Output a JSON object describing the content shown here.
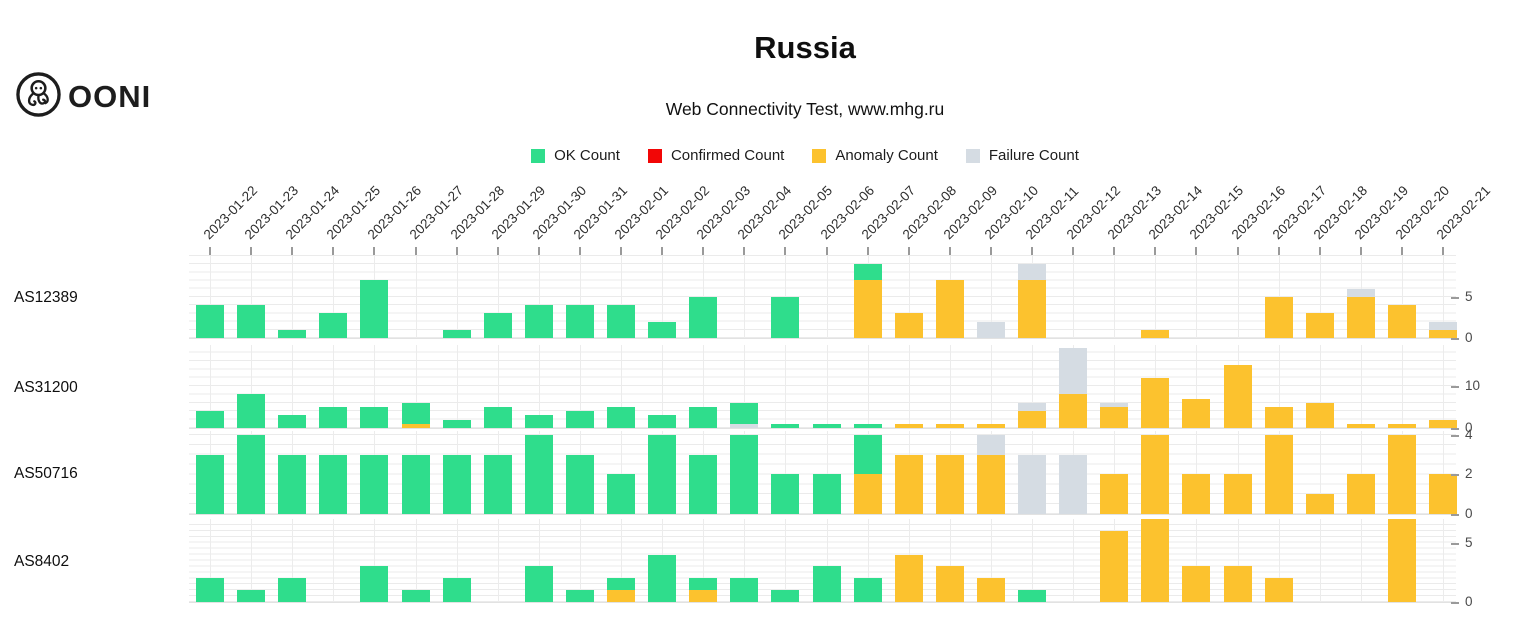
{
  "header": {
    "title": "Russia",
    "subtitle": "Web Connectivity Test, www.mhg.ru",
    "logo_text": "OONI"
  },
  "legend": [
    {
      "key": "ok",
      "label": "OK Count",
      "color": "#2fdd8c"
    },
    {
      "key": "confirmed",
      "label": "Confirmed Count",
      "color": "#f20606"
    },
    {
      "key": "anomaly",
      "label": "Anomaly Count",
      "color": "#fcc22e"
    },
    {
      "key": "failure",
      "label": "Failure Count",
      "color": "#d5dce3"
    }
  ],
  "chart_data": {
    "type": "bar",
    "stacked": true,
    "grid": true,
    "stack_order_bottom_to_top": [
      "anomaly",
      "confirmed",
      "failure",
      "ok"
    ],
    "x_axis_position": "top",
    "y_axis_position": "right",
    "x": [
      "2023-01-22",
      "2023-01-23",
      "2023-01-24",
      "2023-01-25",
      "2023-01-26",
      "2023-01-27",
      "2023-01-28",
      "2023-01-29",
      "2023-01-30",
      "2023-01-31",
      "2023-02-01",
      "2023-02-02",
      "2023-02-03",
      "2023-02-04",
      "2023-02-05",
      "2023-02-06",
      "2023-02-07",
      "2023-02-08",
      "2023-02-09",
      "2023-02-10",
      "2023-02-11",
      "2023-02-12",
      "2023-02-13",
      "2023-02-14",
      "2023-02-15",
      "2023-02-16",
      "2023-02-17",
      "2023-02-18",
      "2023-02-19",
      "2023-02-20",
      "2023-02-21"
    ],
    "rows": [
      {
        "asn": "AS12389",
        "ylim": [
          0,
          10.1
        ],
        "y_ticks": [
          0,
          5
        ],
        "grid_step": 1,
        "series": {
          "ok": [
            4,
            4,
            1,
            3,
            7,
            0,
            1,
            3,
            4,
            4,
            4,
            2,
            5,
            0,
            5,
            0,
            2,
            0,
            0,
            0,
            0,
            0,
            0,
            0,
            0,
            0,
            0,
            0,
            0,
            0,
            0
          ],
          "confirmed": [
            0,
            0,
            0,
            0,
            0,
            0,
            0,
            0,
            0,
            0,
            0,
            0,
            0,
            0,
            0,
            0,
            0,
            0,
            0,
            0,
            0,
            0,
            0,
            0,
            0,
            0,
            0,
            0,
            0,
            0,
            0
          ],
          "anomaly": [
            0,
            0,
            0,
            0,
            0,
            0,
            0,
            0,
            0,
            0,
            0,
            0,
            0,
            0,
            0,
            0,
            7,
            3,
            7,
            0,
            7,
            0,
            0,
            1,
            0,
            0,
            5,
            3,
            5,
            4,
            1
          ],
          "failure": [
            0,
            0,
            0,
            0,
            0,
            0,
            0,
            0,
            0,
            0,
            0,
            0,
            0,
            0,
            0,
            0,
            0,
            0,
            0,
            2,
            2,
            0,
            0,
            0,
            0,
            0,
            0,
            0,
            1,
            0,
            1
          ]
        }
      },
      {
        "asn": "AS31200",
        "ylim": [
          0,
          19.8
        ],
        "y_ticks": [
          0,
          10
        ],
        "grid_step": 2,
        "series": {
          "ok": [
            4,
            8,
            3,
            5,
            5,
            5,
            2,
            5,
            3,
            4,
            5,
            3,
            5,
            5,
            1,
            1,
            1,
            0,
            0,
            0,
            0,
            0,
            0,
            0,
            0,
            0,
            0,
            0,
            0,
            0,
            0
          ],
          "confirmed": [
            0,
            0,
            0,
            0,
            0,
            0,
            0,
            0,
            0,
            0,
            0,
            0,
            0,
            0,
            0,
            0,
            0,
            0,
            0,
            0,
            0,
            0,
            0,
            0,
            0,
            0,
            0,
            0,
            0,
            0,
            0
          ],
          "anomaly": [
            0,
            0,
            0,
            0,
            0,
            1,
            0,
            0,
            0,
            0,
            0,
            0,
            0,
            0,
            0,
            0,
            0,
            1,
            1,
            1,
            4,
            8,
            5,
            12,
            7,
            15,
            5,
            6,
            1,
            1,
            2
          ],
          "failure": [
            0,
            0,
            0,
            0,
            0,
            0,
            0,
            0,
            0,
            0,
            0,
            0,
            0,
            1,
            0,
            0,
            0,
            0,
            0,
            0,
            2,
            11,
            1,
            0,
            0,
            0,
            0,
            0,
            0,
            0,
            0
          ]
        }
      },
      {
        "asn": "AS50716",
        "ylim": [
          0,
          4.2
        ],
        "y_ticks": [
          0,
          2,
          4
        ],
        "grid_step": 0.5,
        "series": {
          "ok": [
            3,
            4,
            3,
            3,
            3,
            3,
            3,
            3,
            4,
            3,
            2,
            4,
            3,
            4,
            2,
            2,
            2,
            0,
            0,
            0,
            0,
            0,
            0,
            0,
            0,
            0,
            0,
            0,
            0,
            0,
            0
          ],
          "confirmed": [
            0,
            0,
            0,
            0,
            0,
            0,
            0,
            0,
            0,
            0,
            0,
            0,
            0,
            0,
            0,
            0,
            0,
            0,
            0,
            0,
            0,
            0,
            0,
            0,
            0,
            0,
            0,
            0,
            0,
            0,
            0
          ],
          "anomaly": [
            0,
            0,
            0,
            0,
            0,
            0,
            0,
            0,
            0,
            0,
            0,
            0,
            0,
            0,
            0,
            0,
            2,
            3,
            3,
            3,
            0,
            0,
            2,
            4,
            2,
            2,
            4,
            1,
            2,
            4,
            2
          ],
          "failure": [
            0,
            0,
            0,
            0,
            0,
            0,
            0,
            0,
            0,
            0,
            0,
            0,
            0,
            0,
            0,
            0,
            0,
            0,
            0,
            1,
            3,
            3,
            0,
            0,
            0,
            0,
            0,
            0,
            0,
            0,
            0
          ]
        }
      },
      {
        "asn": "AS8402",
        "ylim": [
          0,
          7.0
        ],
        "y_ticks": [
          0,
          5
        ],
        "grid_step": 0.5,
        "series": {
          "ok": [
            2,
            1,
            2,
            0,
            3,
            1,
            2,
            0,
            3,
            1,
            1,
            4,
            1,
            2,
            1,
            3,
            2,
            0,
            0,
            0,
            1,
            0,
            0,
            0,
            0,
            0,
            0,
            0,
            0,
            0,
            0
          ],
          "confirmed": [
            0,
            0,
            0,
            0,
            0,
            0,
            0,
            0,
            0,
            0,
            0,
            0,
            0,
            0,
            0,
            0,
            0,
            0,
            0,
            0,
            0,
            0,
            0,
            0,
            0,
            0,
            0,
            0,
            0,
            0,
            0
          ],
          "anomaly": [
            0,
            0,
            0,
            0,
            0,
            0,
            0,
            0,
            0,
            0,
            1,
            0,
            1,
            0,
            0,
            0,
            0,
            4,
            3,
            2,
            0,
            0,
            6,
            7,
            3,
            3,
            2,
            0,
            0,
            7,
            0
          ],
          "failure": [
            0,
            0,
            0,
            0,
            0,
            0,
            0,
            0,
            0,
            0,
            0,
            0,
            0,
            0,
            0,
            0,
            0,
            0,
            0,
            0,
            0,
            0,
            0,
            0,
            0,
            0,
            0,
            0,
            0,
            0,
            0
          ]
        }
      }
    ]
  }
}
